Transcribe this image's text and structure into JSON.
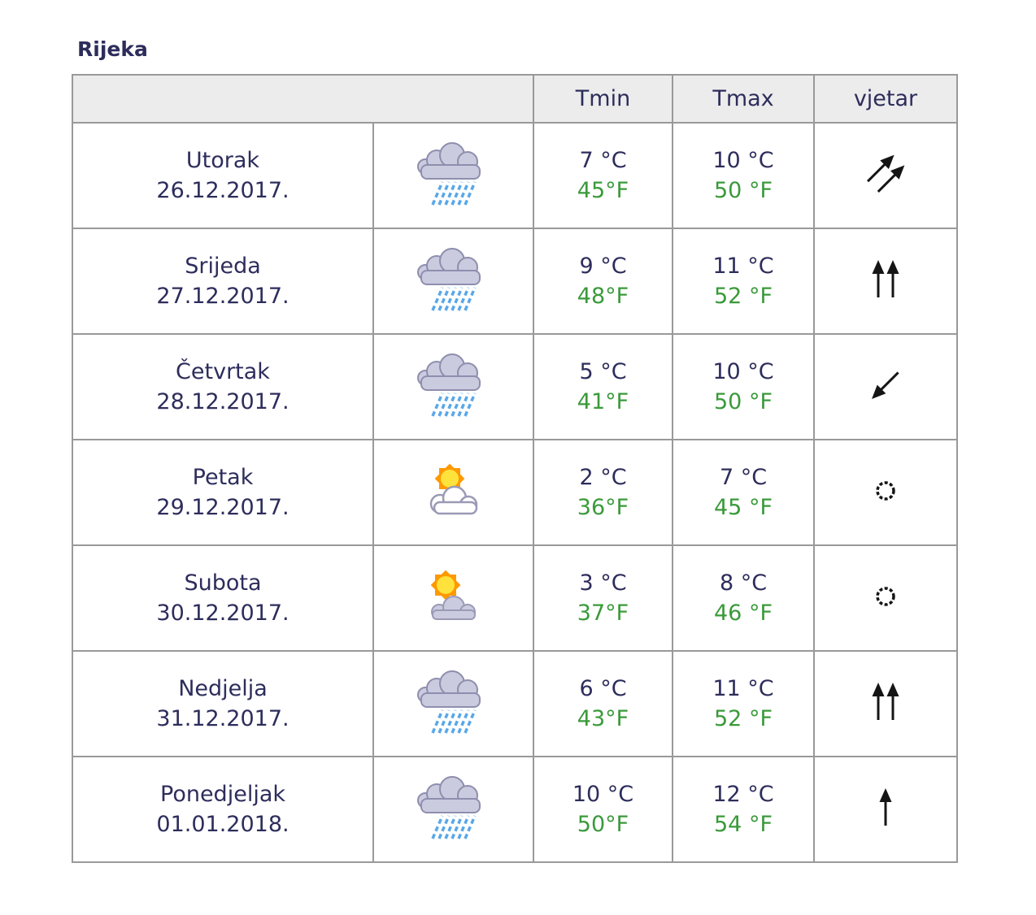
{
  "page": {
    "title": "Rijeka"
  },
  "colors": {
    "heading_text": "#2d2d5c",
    "celsius_text": "#2d2d5c",
    "fahrenheit_text": "#3a9a3a",
    "header_row_bg": "#ececec",
    "table_border": "#999999",
    "rain_blue": "#59a7e8",
    "cloud_fill": "#cbcbe0",
    "sun_yellow": "#ffe23c",
    "sun_ray_orange": "#ff9900"
  },
  "table": {
    "headers": {
      "day": "",
      "tmin": "Tmin",
      "tmax": "Tmax",
      "wind": "vjetar"
    },
    "rows": [
      {
        "day": "Utorak",
        "date": "26.12.2017.",
        "icon": "rain",
        "tmin_c": "7 °C",
        "tmin_f": "45°F",
        "tmax_c": "10 °C",
        "tmax_f": "50 °F",
        "wind": {
          "symbol": "double-arrow",
          "direction": "NE"
        }
      },
      {
        "day": "Srijeda",
        "date": "27.12.2017.",
        "icon": "rain",
        "tmin_c": "9 °C",
        "tmin_f": "48°F",
        "tmax_c": "11 °C",
        "tmax_f": "52 °F",
        "wind": {
          "symbol": "double-arrow",
          "direction": "N"
        }
      },
      {
        "day": "Četvrtak",
        "date": "28.12.2017.",
        "icon": "rain",
        "tmin_c": "5 °C",
        "tmin_f": "41°F",
        "tmax_c": "10 °C",
        "tmax_f": "50 °F",
        "wind": {
          "symbol": "single-arrow",
          "direction": "SW"
        }
      },
      {
        "day": "Petak",
        "date": "29.12.2017.",
        "icon": "sun-cloud-light",
        "tmin_c": "2 °C",
        "tmin_f": "36°F",
        "tmax_c": "7 °C",
        "tmax_f": "45 °F",
        "wind": {
          "symbol": "calm-circle",
          "direction": ""
        }
      },
      {
        "day": "Subota",
        "date": "30.12.2017.",
        "icon": "sun-cloud-filled",
        "tmin_c": "3 °C",
        "tmin_f": "37°F",
        "tmax_c": "8 °C",
        "tmax_f": "46 °F",
        "wind": {
          "symbol": "calm-circle",
          "direction": ""
        }
      },
      {
        "day": "Nedjelja",
        "date": "31.12.2017.",
        "icon": "rain",
        "tmin_c": "6 °C",
        "tmin_f": "43°F",
        "tmax_c": "11 °C",
        "tmax_f": "52 °F",
        "wind": {
          "symbol": "double-arrow",
          "direction": "N"
        }
      },
      {
        "day": "Ponedjeljak",
        "date": "01.01.2018.",
        "icon": "rain",
        "tmin_c": "10 °C",
        "tmin_f": "50°F",
        "tmax_c": "12 °C",
        "tmax_f": "54 °F",
        "wind": {
          "symbol": "single-arrow",
          "direction": "N"
        }
      }
    ]
  }
}
